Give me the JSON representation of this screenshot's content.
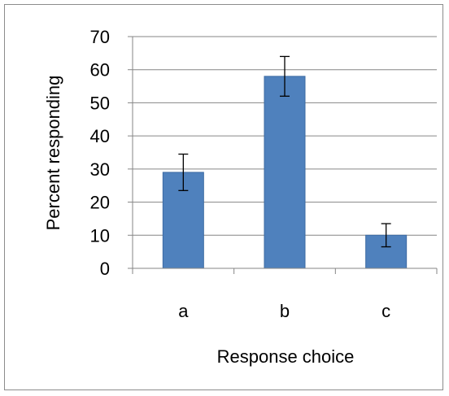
{
  "chart_data": {
    "type": "bar",
    "categories": [
      "a",
      "b",
      "c"
    ],
    "values": [
      29,
      58,
      10
    ],
    "error": [
      5.5,
      6,
      3.5
    ],
    "xlabel": "Response choice",
    "ylabel": "Percent responding",
    "ylim": [
      0,
      70
    ],
    "yticks": [
      0,
      10,
      20,
      30,
      40,
      50,
      60,
      70
    ],
    "grid": true,
    "legend": "none",
    "colors": {
      "bar": "#4f81bd",
      "bar_border": "#3d6ba3",
      "grid": "#868686",
      "axis": "#868686",
      "error": "#000000"
    }
  }
}
